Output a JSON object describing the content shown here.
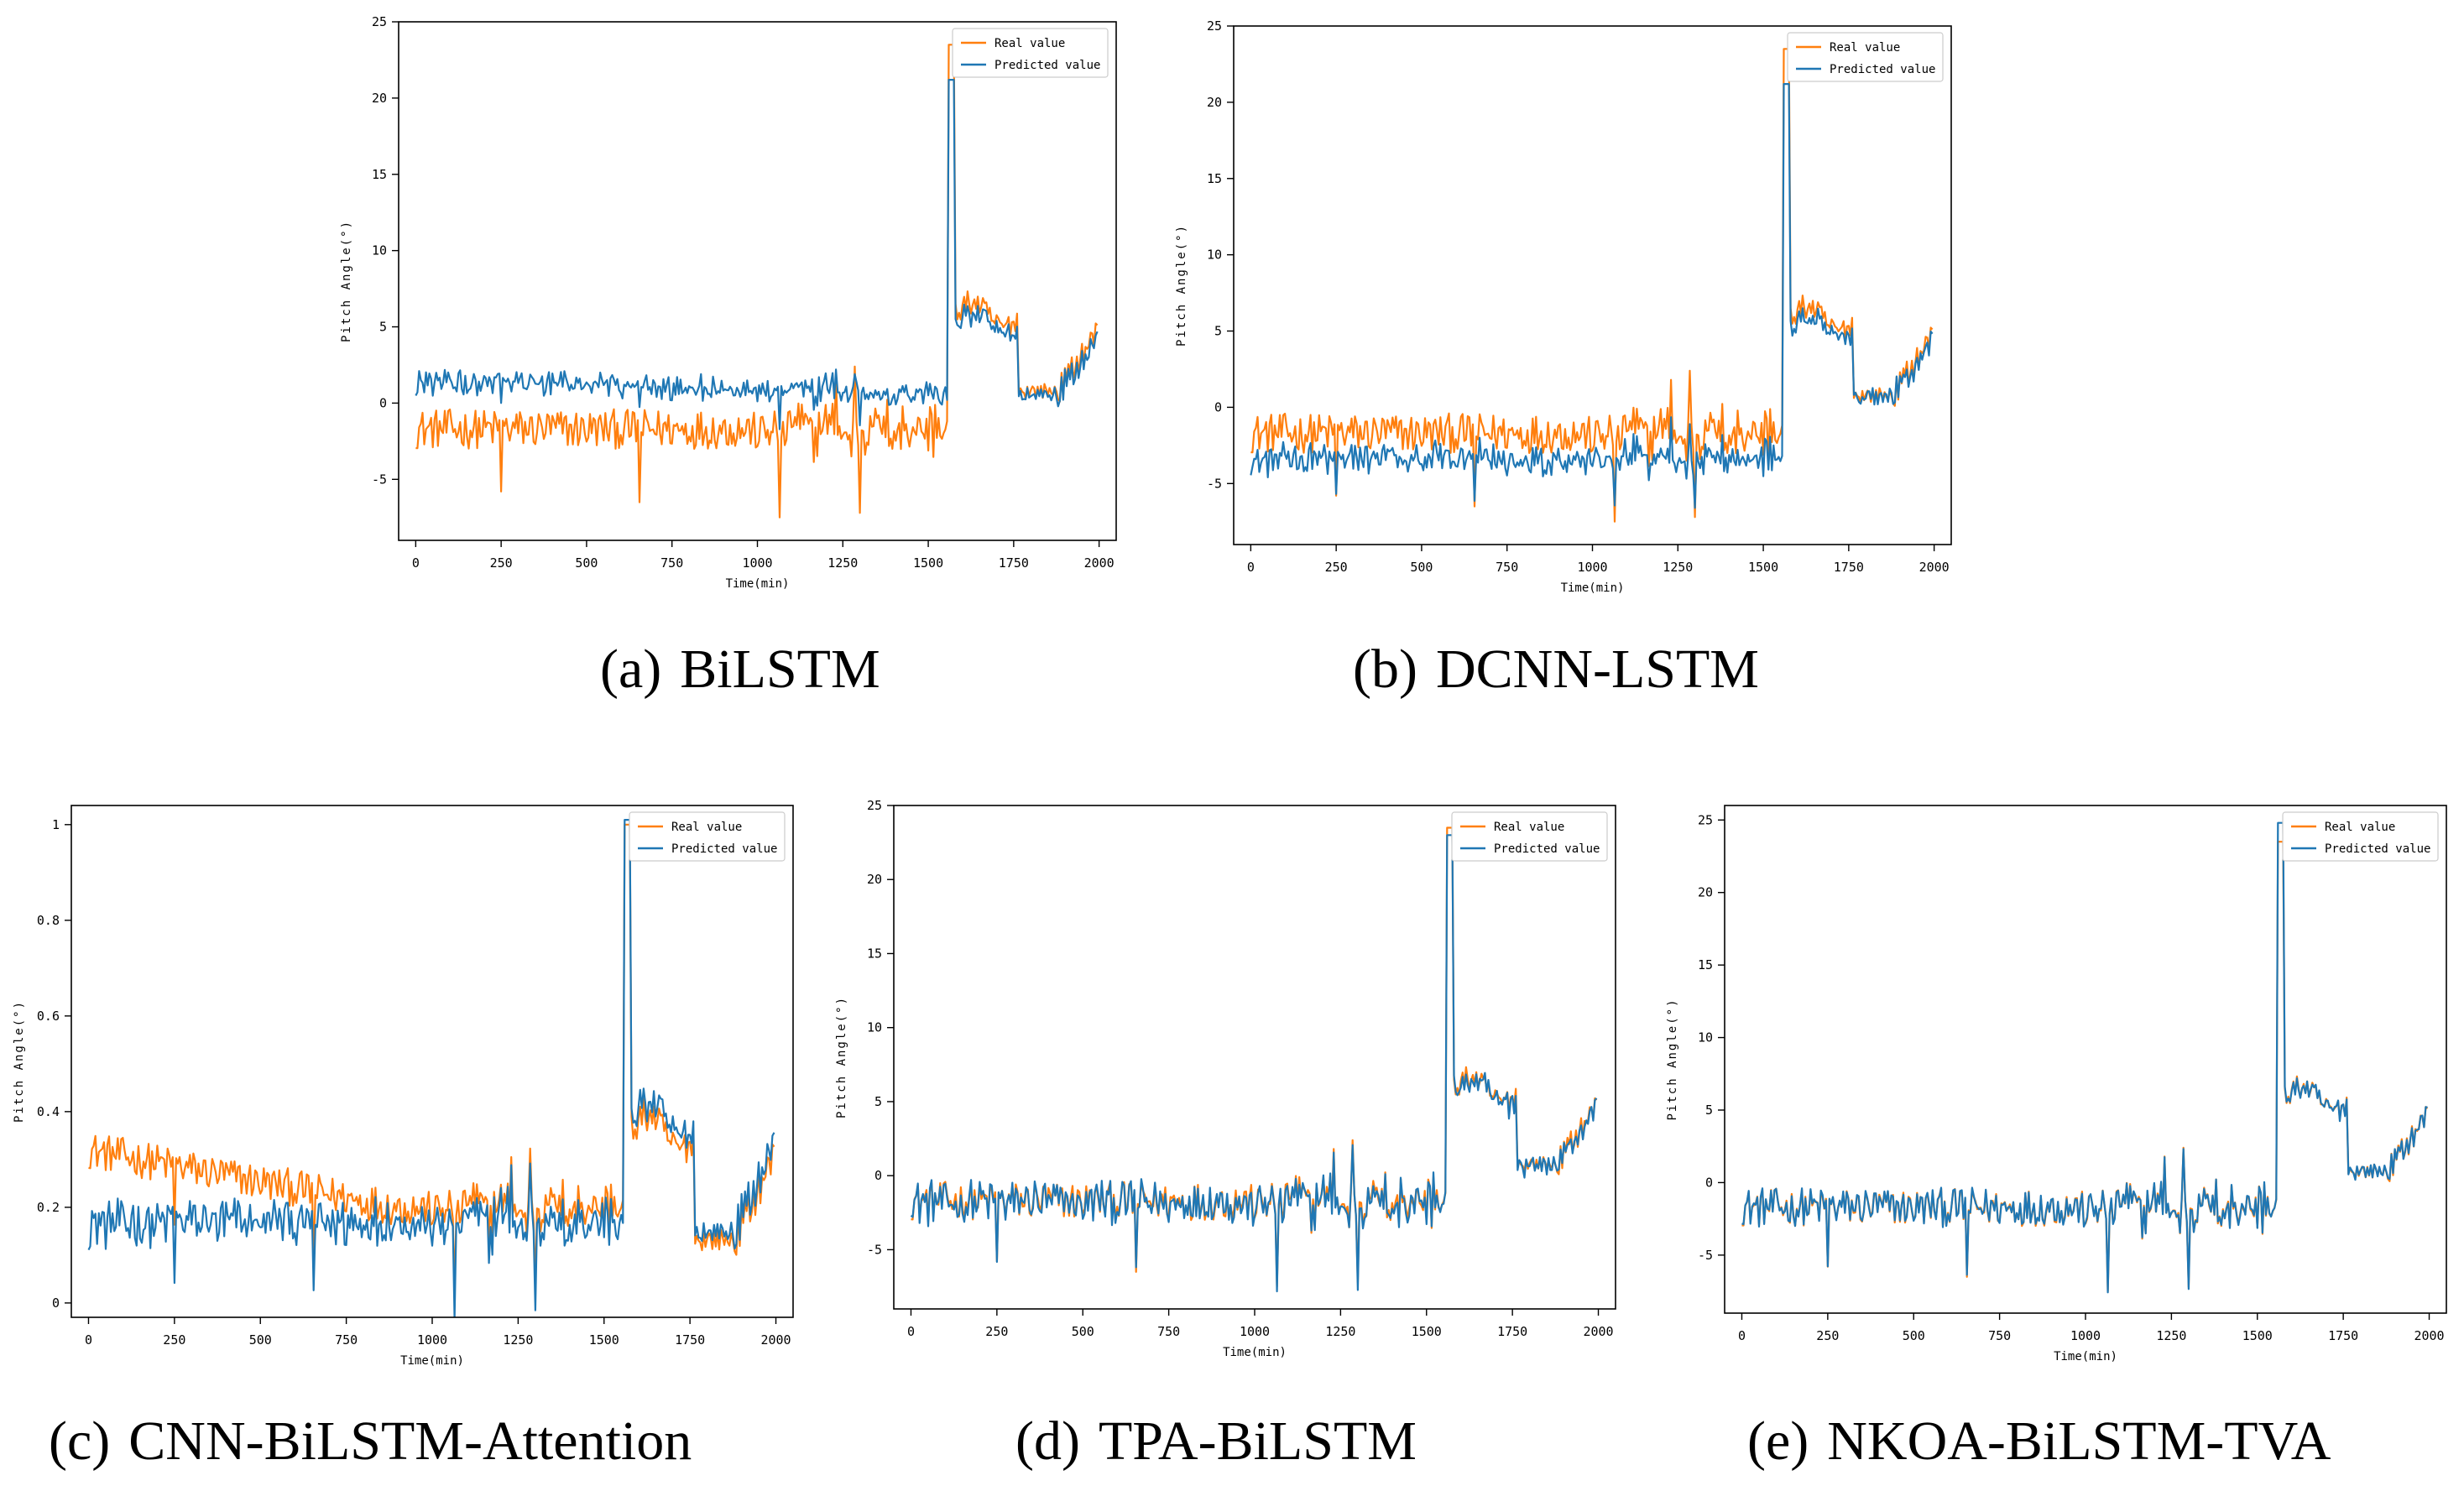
{
  "chart_data": [
    {
      "type": "line",
      "panel_label": "(a)",
      "caption": "BiLSTM",
      "xlabel": "Time(min)",
      "ylabel": "Pitch Angle(°)",
      "xlim": [
        -50,
        2050
      ],
      "ylim": [
        -9,
        25
      ],
      "xticks": [
        0,
        250,
        500,
        750,
        1000,
        1250,
        1500,
        1750,
        2000
      ],
      "yticks": [
        -5,
        0,
        5,
        10,
        15,
        20,
        25
      ],
      "series": [
        {
          "name": "Real value",
          "color": "#ff7f0e",
          "pattern": "real"
        },
        {
          "name": "Predicted value",
          "color": "#1f77b4",
          "pattern": "pred_high"
        }
      ],
      "legend": "top-right"
    },
    {
      "type": "line",
      "panel_label": "(b)",
      "caption": "DCNN-LSTM",
      "xlabel": "Time(min)",
      "ylabel": "Pitch Angle(°)",
      "xlim": [
        -50,
        2050
      ],
      "ylim": [
        -9,
        25
      ],
      "xticks": [
        0,
        250,
        500,
        750,
        1000,
        1250,
        1500,
        1750,
        2000
      ],
      "yticks": [
        -5,
        0,
        5,
        10,
        15,
        20,
        25
      ],
      "series": [
        {
          "name": "Real value",
          "color": "#ff7f0e",
          "pattern": "real"
        },
        {
          "name": "Predicted value",
          "color": "#1f77b4",
          "pattern": "pred_low"
        }
      ],
      "legend": "top-right"
    },
    {
      "type": "line",
      "panel_label": "(c)",
      "caption": "CNN-BiLSTM-Attention",
      "xlabel": "Time(min)",
      "ylabel": "Pitch Angle(°)",
      "xlim": [
        -50,
        2050
      ],
      "ylim": [
        -0.03,
        1.04
      ],
      "xticks": [
        0,
        250,
        500,
        750,
        1000,
        1250,
        1500,
        1750,
        2000
      ],
      "yticks": [
        0.0,
        0.2,
        0.4,
        0.6,
        0.8,
        1.0
      ],
      "series": [
        {
          "name": "Real value",
          "color": "#ff7f0e",
          "pattern": "real_norm"
        },
        {
          "name": "Predicted value",
          "color": "#1f77b4",
          "pattern": "pred_norm"
        }
      ],
      "legend": "top-right"
    },
    {
      "type": "line",
      "panel_label": "(d)",
      "caption": "TPA-BiLSTM",
      "xlabel": "Time(min)",
      "ylabel": "Pitch Angle(°)",
      "xlim": [
        -50,
        2050
      ],
      "ylim": [
        -9,
        25
      ],
      "xticks": [
        0,
        250,
        500,
        750,
        1000,
        1250,
        1500,
        1750,
        2000
      ],
      "yticks": [
        -5,
        0,
        5,
        10,
        15,
        20,
        25
      ],
      "series": [
        {
          "name": "Real value",
          "color": "#ff7f0e",
          "pattern": "real"
        },
        {
          "name": "Predicted value",
          "color": "#1f77b4",
          "pattern": "pred_close"
        }
      ],
      "legend": "top-right"
    },
    {
      "type": "line",
      "panel_label": "(e)",
      "caption": "NKOA-BiLSTM-TVA",
      "xlabel": "Time(min)",
      "ylabel": "Pitch Angle(°)",
      "xlim": [
        -50,
        2050
      ],
      "ylim": [
        -9,
        26
      ],
      "xticks": [
        0,
        250,
        500,
        750,
        1000,
        1250,
        1500,
        1750,
        2000
      ],
      "yticks": [
        -5,
        0,
        5,
        10,
        15,
        20,
        25
      ],
      "series": [
        {
          "name": "Real value",
          "color": "#ff7f0e",
          "pattern": "real"
        },
        {
          "name": "Predicted value",
          "color": "#1f77b4",
          "pattern": "pred_exact"
        }
      ],
      "legend": "top-right"
    }
  ]
}
